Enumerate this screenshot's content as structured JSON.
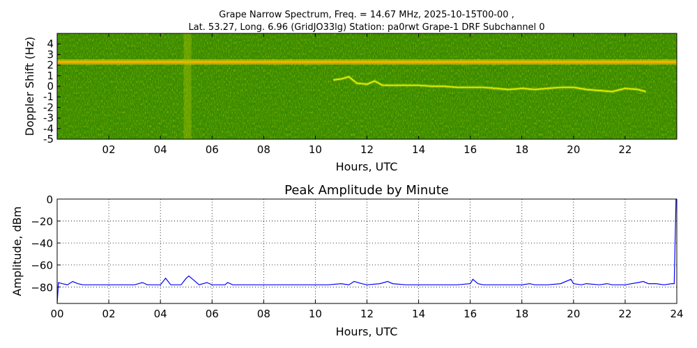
{
  "figure": {
    "title_line1": "Grape Narrow Spectrum, Freq. = 14.67 MHz, 2025-10-15T00-00 ,",
    "title_line2": "Lat.  53.27, Long.   6.96 (GridJO33lg) Station: pa0rwt Grape-1 DRF Subchannel 0"
  },
  "chart_data": [
    {
      "type": "heatmap",
      "title": "",
      "xlabel": "Hours, UTC",
      "ylabel": "Doppler Shift (Hz)",
      "xlim": [
        0,
        24
      ],
      "ylim": [
        -5,
        5
      ],
      "x_ticks": [
        "02",
        "04",
        "06",
        "08",
        "10",
        "12",
        "14",
        "16",
        "18",
        "20",
        "22"
      ],
      "x_tick_values": [
        2,
        4,
        6,
        8,
        10,
        12,
        14,
        16,
        18,
        20,
        22
      ],
      "y_ticks": [
        "4",
        "3",
        "2",
        "1",
        "0",
        "-1",
        "-2",
        "-3",
        "-4",
        "-5"
      ],
      "y_tick_values": [
        4,
        3,
        2,
        1,
        0,
        -1,
        -2,
        -3,
        -4,
        -5
      ],
      "background_color": "#3a8a00",
      "features": [
        {
          "kind": "constant_carrier",
          "doppler_hz": 2.3,
          "from_hour": 0,
          "to_hour": 24,
          "color": "#ffd200"
        },
        {
          "kind": "ionospheric_trace",
          "color": "#e8f000",
          "points": [
            [
              10.7,
              0.6
            ],
            [
              11.0,
              0.7
            ],
            [
              11.3,
              0.9
            ],
            [
              11.6,
              0.3
            ],
            [
              12.0,
              0.2
            ],
            [
              12.3,
              0.5
            ],
            [
              12.6,
              0.1
            ],
            [
              13.0,
              0.1
            ],
            [
              13.5,
              0.1
            ],
            [
              14.0,
              0.1
            ],
            [
              14.5,
              0.0
            ],
            [
              15.0,
              0.0
            ],
            [
              15.5,
              -0.1
            ],
            [
              16.0,
              -0.1
            ],
            [
              16.5,
              -0.1
            ],
            [
              17.0,
              -0.2
            ],
            [
              17.5,
              -0.3
            ],
            [
              18.0,
              -0.2
            ],
            [
              18.5,
              -0.3
            ],
            [
              19.0,
              -0.2
            ],
            [
              19.5,
              -0.1
            ],
            [
              20.0,
              -0.1
            ],
            [
              20.5,
              -0.3
            ],
            [
              21.0,
              -0.4
            ],
            [
              21.5,
              -0.5
            ],
            [
              22.0,
              -0.2
            ],
            [
              22.5,
              -0.3
            ],
            [
              22.8,
              -0.5
            ]
          ]
        },
        {
          "kind": "broadband_noise",
          "from_hour": 4.9,
          "to_hour": 5.2
        }
      ]
    },
    {
      "type": "line",
      "title": "Peak Amplitude by Minute",
      "xlabel": "Hours, UTC",
      "ylabel": "Amplitude, dBm",
      "xlim": [
        0,
        24
      ],
      "ylim": [
        -95,
        0
      ],
      "grid": true,
      "x_ticks": [
        "00",
        "02",
        "04",
        "06",
        "08",
        "10",
        "12",
        "14",
        "16",
        "18",
        "20",
        "22",
        "24"
      ],
      "x_tick_values": [
        0,
        2,
        4,
        6,
        8,
        10,
        12,
        14,
        16,
        18,
        20,
        22,
        24
      ],
      "y_ticks": [
        "0",
        "−20",
        "−40",
        "−60",
        "−80"
      ],
      "y_tick_values": [
        0,
        -20,
        -40,
        -60,
        -80
      ],
      "series": [
        {
          "color": "#0000ff",
          "x": [
            0,
            0.05,
            0.2,
            0.4,
            0.6,
            0.8,
            1,
            1.5,
            2,
            2.5,
            3,
            3.3,
            3.5,
            4,
            4.2,
            4.4,
            4.8,
            5,
            5.1,
            5.3,
            5.5,
            5.8,
            6,
            6.5,
            6.6,
            6.8,
            7,
            7.5,
            8,
            8.5,
            9,
            9.5,
            10,
            10.5,
            11,
            11.3,
            11.5,
            11.8,
            12,
            12.5,
            12.8,
            13,
            13.5,
            14,
            14.5,
            15,
            15.5,
            16,
            16.1,
            16.3,
            16.5,
            17,
            17.5,
            18,
            18.3,
            18.5,
            19,
            19.5,
            19.9,
            20,
            20.3,
            20.5,
            21,
            21.3,
            21.5,
            22,
            22.5,
            22.7,
            22.9,
            23.2,
            23.5,
            23.8,
            23.9,
            23.97,
            24
          ],
          "values": [
            -95,
            -76,
            -77,
            -78,
            -75,
            -77,
            -78,
            -78,
            -78,
            -78,
            -78,
            -76,
            -78,
            -78,
            -72,
            -78,
            -78,
            -72,
            -70,
            -74,
            -78,
            -76,
            -78,
            -78,
            -76,
            -78,
            -78,
            -78,
            -78,
            -78,
            -78,
            -78,
            -78,
            -78,
            -77,
            -78,
            -75,
            -77,
            -78,
            -77,
            -75,
            -77,
            -78,
            -78,
            -78,
            -78,
            -78,
            -77,
            -73,
            -77,
            -78,
            -78,
            -78,
            -78,
            -77,
            -78,
            -78,
            -77,
            -73,
            -77,
            -78,
            -77,
            -78,
            -77,
            -78,
            -78,
            -76,
            -75,
            -77,
            -77,
            -78,
            -77,
            -77,
            0,
            0
          ]
        }
      ]
    }
  ]
}
